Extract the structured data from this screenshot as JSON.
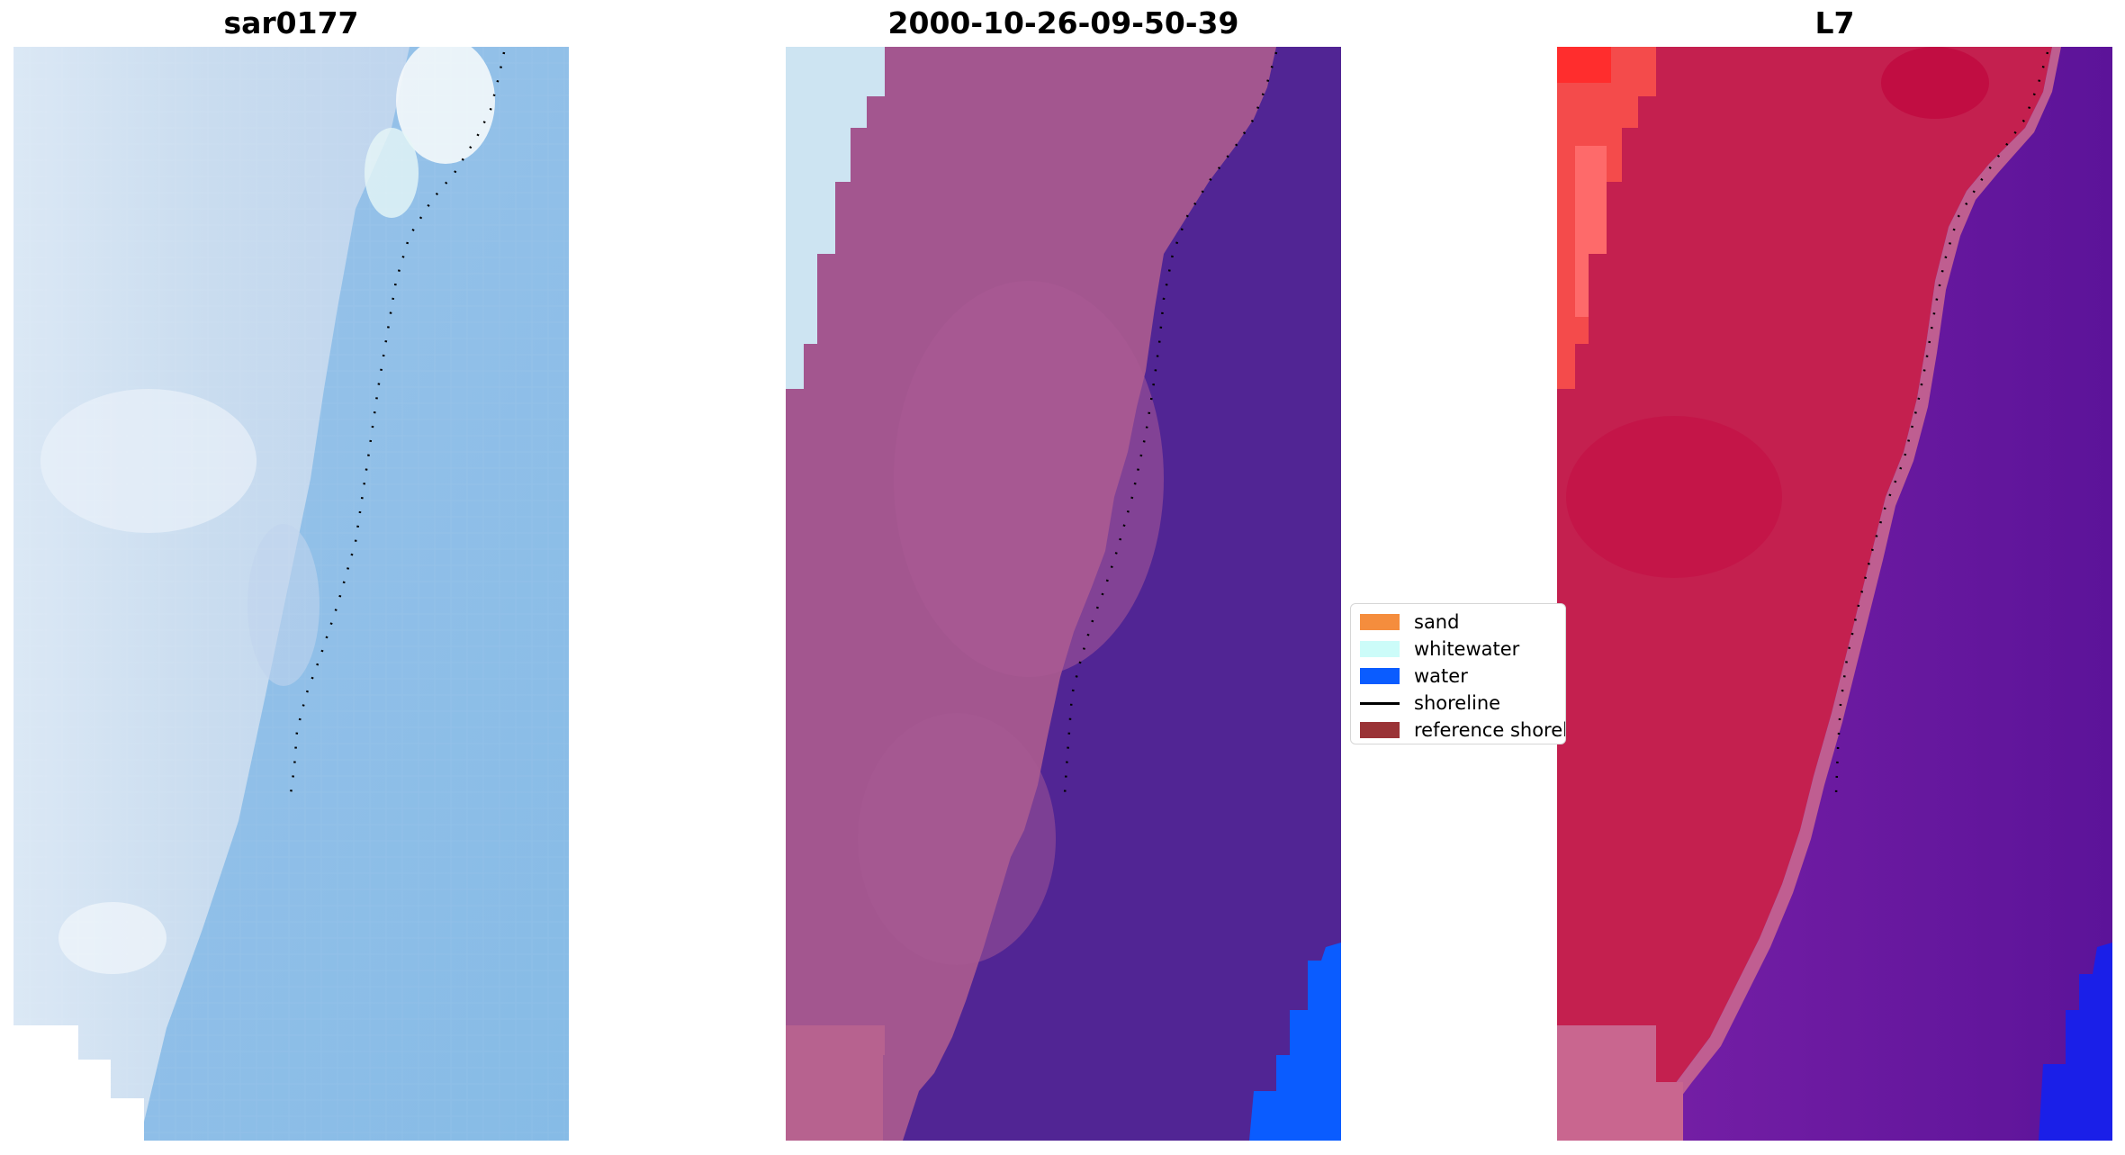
{
  "panels": [
    {
      "title": "sar0177"
    },
    {
      "title": "2000-10-26-09-50-39"
    },
    {
      "title": "L7"
    }
  ],
  "legend": {
    "items": [
      {
        "label": "sand",
        "color": "#f58d3d",
        "kind": "patch"
      },
      {
        "label": "whitewater",
        "color": "#ccfcf9",
        "kind": "patch"
      },
      {
        "label": "water",
        "color": "#0a5cff",
        "kind": "patch"
      },
      {
        "label": "shoreline",
        "color": "#000000",
        "kind": "line"
      },
      {
        "label": "reference shoreline",
        "color": "#9a3336",
        "kind": "patch"
      }
    ]
  },
  "colors": {
    "rgb_land": "#c6d8ee",
    "rgb_land_light": "#e2eef8",
    "rgb_water": "#8fbde6",
    "class_land": "#a3568f",
    "class_water": "#512594",
    "class_ocean": "#0a5cff",
    "class_whitewater": "#cde4f2",
    "class_beach": "#b7628f",
    "false_land": "#c4204f",
    "false_land_bright": "#f44b4b",
    "false_water": "#6f1aa1",
    "false_ocean": "#1a1fe8",
    "false_sand": "#c9668f"
  }
}
